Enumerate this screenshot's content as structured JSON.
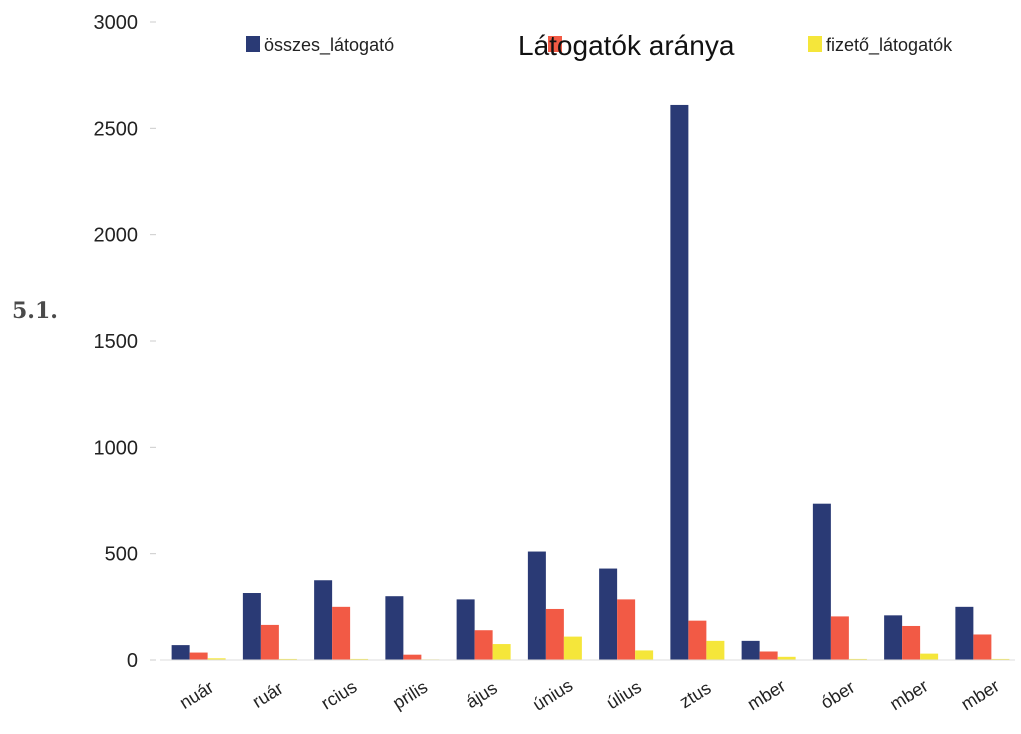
{
  "figure_label": "5.1.",
  "chart_data": {
    "type": "bar",
    "title": "Látogatók aránya",
    "categories": [
      "nuár",
      "ruár",
      "rcius",
      "prilis",
      "ájus",
      "únius",
      "úlius",
      "ztus",
      "mber",
      "óber",
      "mber",
      "mber"
    ],
    "series": [
      {
        "name": "összes_látogató",
        "color": "#2a3a75",
        "values": [
          70,
          315,
          375,
          300,
          285,
          510,
          430,
          2610,
          90,
          735,
          210,
          250
        ]
      },
      {
        "name": "",
        "color": "#f25a45",
        "values": [
          35,
          165,
          250,
          25,
          140,
          240,
          285,
          185,
          40,
          205,
          160,
          120
        ]
      },
      {
        "name": "fizető_látogatók",
        "color": "#f5e63a",
        "values": [
          8,
          5,
          5,
          3,
          75,
          110,
          45,
          90,
          15,
          5,
          30,
          5
        ]
      }
    ],
    "yticks": [
      0,
      500,
      1000,
      1500,
      2000,
      2500,
      3000
    ],
    "ylim": [
      0,
      3000
    ],
    "grid": false,
    "legend_position": "top"
  }
}
